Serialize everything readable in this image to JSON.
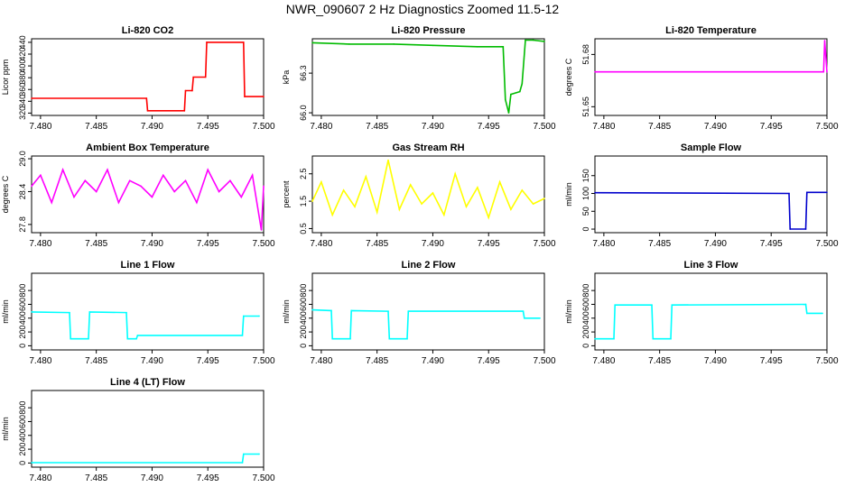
{
  "title": "NWR_090607  2 Hz Diagnostics Zoomed 11.5-12",
  "chart_data": [
    {
      "type": "line",
      "title": "Li-820 CO2",
      "ylabel": "Licor ppm",
      "color": "#ff0000",
      "xlim": [
        7.4792,
        7.5
      ],
      "ylim": [
        316,
        446
      ],
      "xticks": [
        "7.480",
        "7.485",
        "7.490",
        "7.495",
        "7.500"
      ],
      "yticks": [
        "320",
        "340",
        "360",
        "380",
        "400",
        "420",
        "440"
      ],
      "x": [
        7.4792,
        7.4895,
        7.4896,
        7.4929,
        7.493,
        7.4936,
        7.4937,
        7.4948,
        7.4949,
        7.4982,
        7.4983,
        7.5
      ],
      "series": [
        {
          "values": [
            345,
            345,
            324,
            324,
            358,
            358,
            381,
            381,
            440,
            440,
            348,
            348
          ]
        }
      ]
    },
    {
      "type": "line",
      "title": "Li-820 Pressure",
      "ylabel": "kPa",
      "color": "#00bb00",
      "xlim": [
        7.4792,
        7.5
      ],
      "ylim": [
        65.98,
        66.56
      ],
      "xticks": [
        "7.480",
        "7.485",
        "7.490",
        "7.495",
        "7.500"
      ],
      "yticks": [
        "66.0",
        "66.3"
      ],
      "x": [
        7.4792,
        7.4825,
        7.4865,
        7.49,
        7.494,
        7.4963,
        7.4965,
        7.4968,
        7.497,
        7.4978,
        7.498,
        7.4983,
        7.499,
        7.5
      ],
      "series": [
        {
          "values": [
            66.53,
            66.52,
            66.52,
            66.51,
            66.5,
            66.5,
            66.1,
            66.0,
            66.14,
            66.16,
            66.22,
            66.55,
            66.55,
            66.54
          ]
        }
      ]
    },
    {
      "type": "line",
      "title": "Li-820 Temperature",
      "ylabel": "degrees C",
      "color": "#ff00ff",
      "xlim": [
        7.4792,
        7.5
      ],
      "ylim": [
        51.645,
        51.689
      ],
      "xticks": [
        "7.480",
        "7.485",
        "7.490",
        "7.495",
        "7.500"
      ],
      "yticks": [
        "51.65",
        "51.68"
      ],
      "x": [
        7.4792,
        7.4997,
        7.4998,
        7.5
      ],
      "series": [
        {
          "values": [
            51.67,
            51.67,
            51.688,
            51.67
          ]
        }
      ]
    },
    {
      "type": "line",
      "title": "Ambient Box Temperature",
      "ylabel": "degrees C",
      "color": "#ff00ff",
      "xlim": [
        7.4792,
        7.5
      ],
      "ylim": [
        27.65,
        29.05
      ],
      "xticks": [
        "7.480",
        "7.485",
        "7.490",
        "7.495",
        "7.500"
      ],
      "yticks": [
        "27.8",
        "28.4",
        "29.0"
      ],
      "x": [
        7.4792,
        7.48,
        7.481,
        7.482,
        7.483,
        7.484,
        7.485,
        7.486,
        7.487,
        7.488,
        7.489,
        7.49,
        7.491,
        7.492,
        7.493,
        7.494,
        7.495,
        7.496,
        7.497,
        7.498,
        7.499,
        7.4998,
        7.5
      ],
      "series": [
        {
          "values": [
            28.5,
            28.7,
            28.2,
            28.8,
            28.3,
            28.6,
            28.4,
            28.8,
            28.2,
            28.6,
            28.5,
            28.3,
            28.7,
            28.4,
            28.6,
            28.2,
            28.8,
            28.4,
            28.6,
            28.3,
            28.7,
            27.7,
            28.5
          ]
        }
      ]
    },
    {
      "type": "line",
      "title": "Gas Stream RH",
      "ylabel": "percent",
      "color": "#ffff00",
      "xlim": [
        7.4792,
        7.5
      ],
      "ylim": [
        0.35,
        3.15
      ],
      "xticks": [
        "7.480",
        "7.485",
        "7.490",
        "7.495",
        "7.500"
      ],
      "yticks": [
        "0.5",
        "1.5",
        "2.5"
      ],
      "x": [
        7.4792,
        7.48,
        7.481,
        7.482,
        7.483,
        7.484,
        7.485,
        7.486,
        7.487,
        7.488,
        7.489,
        7.49,
        7.491,
        7.492,
        7.493,
        7.494,
        7.495,
        7.496,
        7.497,
        7.498,
        7.499,
        7.5
      ],
      "series": [
        {
          "values": [
            1.5,
            2.2,
            1.0,
            1.9,
            1.3,
            2.4,
            1.1,
            3.0,
            1.2,
            2.1,
            1.4,
            1.8,
            1.0,
            2.5,
            1.3,
            2.0,
            0.9,
            2.2,
            1.2,
            1.9,
            1.4,
            1.6
          ]
        }
      ]
    },
    {
      "type": "line",
      "title": "Sample Flow",
      "ylabel": "ml/min",
      "color": "#0000cc",
      "xlim": [
        7.4792,
        7.5
      ],
      "ylim": [
        -10,
        205
      ],
      "xticks": [
        "7.480",
        "7.485",
        "7.490",
        "7.495",
        "7.500"
      ],
      "yticks": [
        "0",
        "50",
        "100",
        "150"
      ],
      "x": [
        7.4792,
        7.4966,
        7.4967,
        7.4981,
        7.4982,
        7.5
      ],
      "series": [
        {
          "values": [
            102,
            100,
            0,
            0,
            103,
            103
          ]
        }
      ]
    },
    {
      "type": "line",
      "title": "Line 1 Flow",
      "ylabel": "ml/min",
      "color": "#00ffff",
      "xlim": [
        7.4792,
        7.5
      ],
      "ylim": [
        -60,
        1050
      ],
      "xticks": [
        "7.480",
        "7.485",
        "7.490",
        "7.495",
        "7.500"
      ],
      "yticks": [
        "0",
        "200",
        "400",
        "600",
        "800"
      ],
      "x": [
        7.4792,
        7.4826,
        7.4827,
        7.4843,
        7.4844,
        7.4877,
        7.4878,
        7.4886,
        7.4887,
        7.4981,
        7.4982,
        7.4996
      ],
      "series": [
        {
          "values": [
            490,
            480,
            100,
            100,
            490,
            480,
            100,
            100,
            150,
            150,
            430,
            430
          ]
        }
      ]
    },
    {
      "type": "line",
      "title": "Line 2 Flow",
      "ylabel": "ml/min",
      "color": "#00ffff",
      "xlim": [
        7.4792,
        7.5
      ],
      "ylim": [
        -60,
        1050
      ],
      "xticks": [
        "7.480",
        "7.485",
        "7.490",
        "7.495",
        "7.500"
      ],
      "yticks": [
        "0",
        "200",
        "400",
        "600",
        "800"
      ],
      "x": [
        7.4792,
        7.4809,
        7.481,
        7.4826,
        7.4827,
        7.486,
        7.4861,
        7.4877,
        7.4878,
        7.4981,
        7.4982,
        7.4996
      ],
      "series": [
        {
          "values": [
            520,
            510,
            100,
            100,
            510,
            500,
            100,
            100,
            500,
            500,
            400,
            400
          ]
        }
      ]
    },
    {
      "type": "line",
      "title": "Line 3 Flow",
      "ylabel": "ml/min",
      "color": "#00ffff",
      "xlim": [
        7.4792,
        7.5
      ],
      "ylim": [
        -60,
        1050
      ],
      "xticks": [
        "7.480",
        "7.485",
        "7.490",
        "7.495",
        "7.500"
      ],
      "yticks": [
        "0",
        "200",
        "400",
        "600",
        "800"
      ],
      "x": [
        7.4792,
        7.4809,
        7.481,
        7.4843,
        7.4844,
        7.486,
        7.4861,
        7.4981,
        7.4982,
        7.4996
      ],
      "series": [
        {
          "values": [
            100,
            100,
            590,
            590,
            100,
            100,
            590,
            600,
            470,
            470
          ]
        }
      ]
    },
    {
      "type": "line",
      "title": "Line 4 (LT) Flow",
      "ylabel": "ml/min",
      "color": "#00ffff",
      "xlim": [
        7.4792,
        7.5
      ],
      "ylim": [
        -60,
        1050
      ],
      "xticks": [
        "7.480",
        "7.485",
        "7.490",
        "7.495",
        "7.500"
      ],
      "yticks": [
        "0",
        "200",
        "400",
        "600",
        "800"
      ],
      "x": [
        7.4792,
        7.4981,
        7.4982,
        7.4996
      ],
      "series": [
        {
          "values": [
            5,
            5,
            130,
            130
          ]
        }
      ]
    }
  ]
}
